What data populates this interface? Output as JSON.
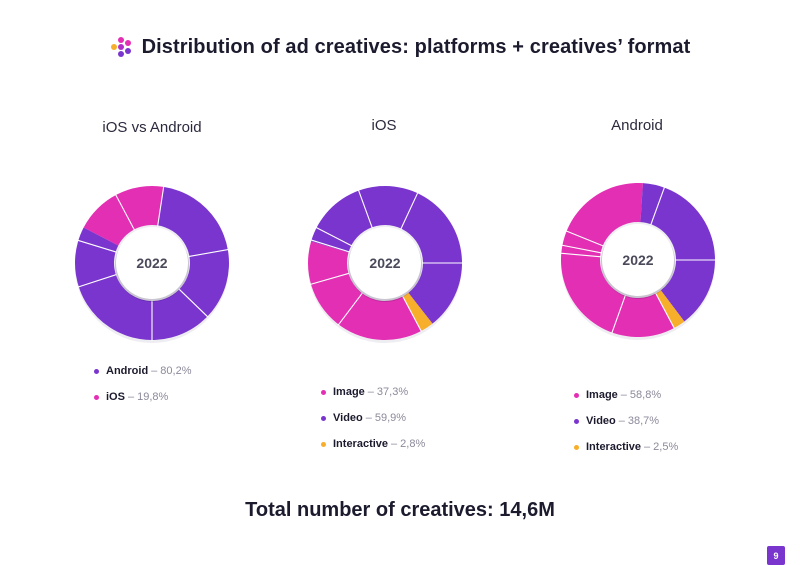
{
  "header": {
    "title": "Distribution of ad creatives: platforms + creatives’ format"
  },
  "colors": {
    "purple": "#7a35cf",
    "pink": "#e32fb3",
    "orange": "#f7ae2a",
    "divider": "#ffffff"
  },
  "chart_data": [
    {
      "type": "pie",
      "variant": "donut",
      "title": "iOS vs Android",
      "center_label": "2022",
      "series": [
        {
          "name": "Android",
          "value": 80.2,
          "label": "80,2%",
          "color": "#7a35cf"
        },
        {
          "name": "iOS",
          "value": 19.8,
          "label": "19,8%",
          "color": "#e32fb3"
        }
      ]
    },
    {
      "type": "pie",
      "variant": "donut",
      "title": "iOS",
      "center_label": "2022",
      "series": [
        {
          "name": "Image",
          "value": 37.3,
          "label": "37,3%",
          "color": "#e32fb3"
        },
        {
          "name": "Video",
          "value": 59.9,
          "label": "59,9%",
          "color": "#7a35cf"
        },
        {
          "name": "Interactive",
          "value": 2.8,
          "label": "2,8%",
          "color": "#f7ae2a"
        }
      ]
    },
    {
      "type": "pie",
      "variant": "donut",
      "title": "Android",
      "center_label": "2022",
      "series": [
        {
          "name": "Image",
          "value": 58.8,
          "label": "58,8%",
          "color": "#e32fb3"
        },
        {
          "name": "Video",
          "value": 38.7,
          "label": "38,7%",
          "color": "#7a35cf"
        },
        {
          "name": "Interactive",
          "value": 2.5,
          "label": "2,5%",
          "color": "#f7ae2a"
        }
      ]
    }
  ],
  "legend_separator": "–",
  "footer": {
    "total": "Total number of creatives: 14,6M",
    "page_number": "9"
  }
}
